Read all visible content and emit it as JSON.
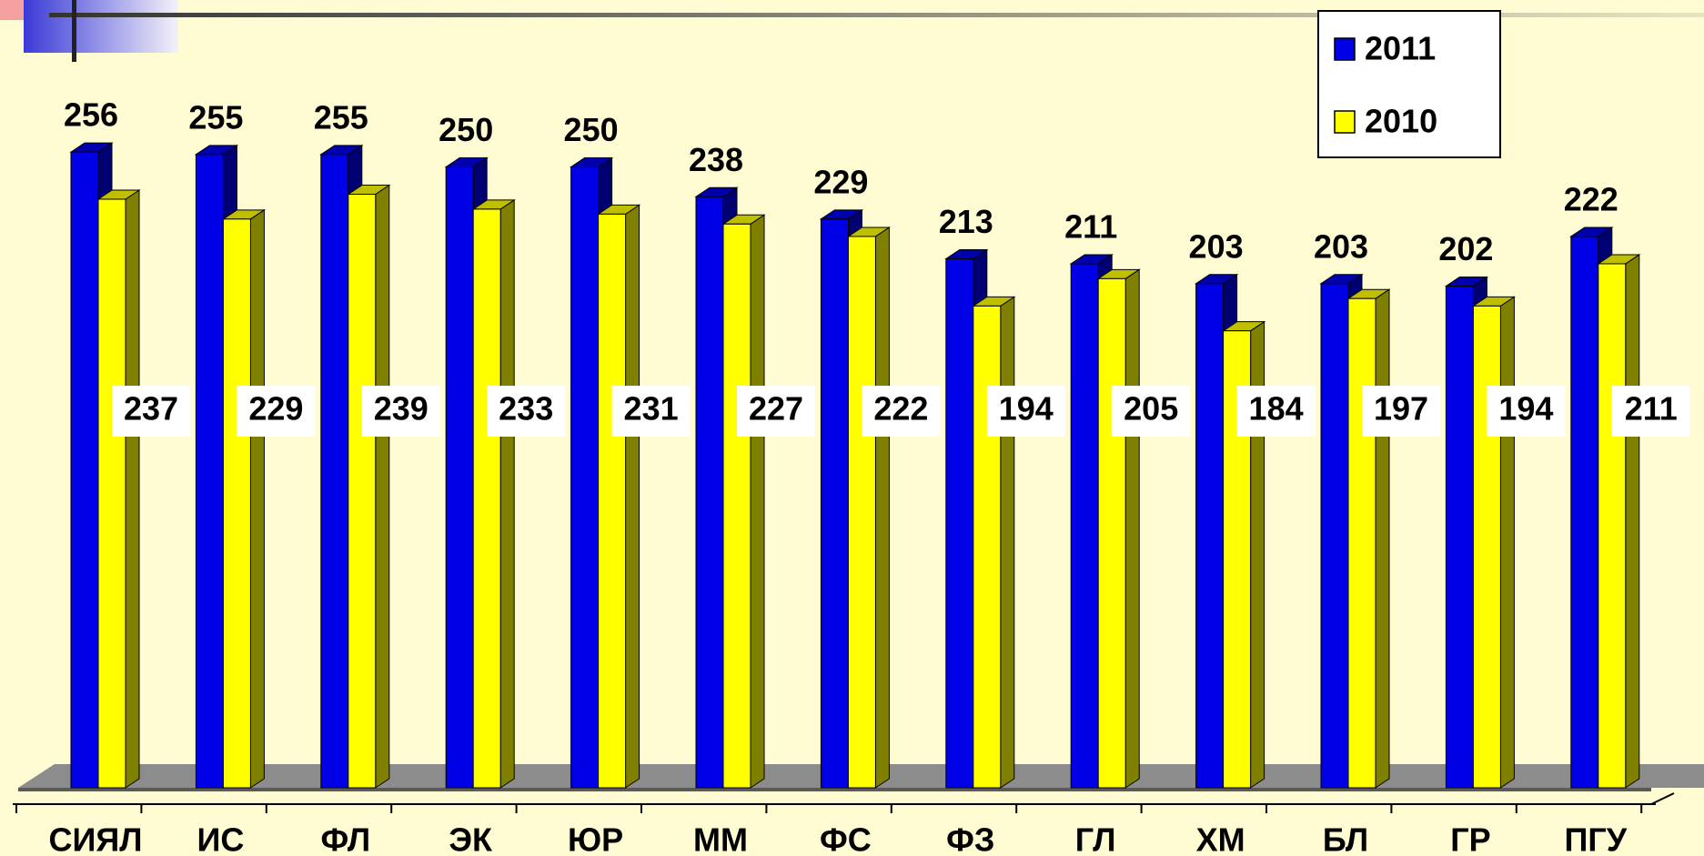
{
  "chart_data": {
    "type": "bar3d",
    "categories": [
      "СИЯЛ",
      "ИС",
      "ФЛ",
      "ЭК",
      "ЮР",
      "ММ",
      "ФС",
      "ФЗ",
      "ГЛ",
      "ХМ",
      "БЛ",
      "ГР",
      "ПГУ"
    ],
    "series": [
      {
        "name": "2011",
        "color": "#0000e6",
        "values": [
          256,
          255,
          255,
          250,
          250,
          238,
          229,
          213,
          211,
          203,
          203,
          202,
          222
        ]
      },
      {
        "name": "2010",
        "color": "#ffff00",
        "values": [
          237,
          229,
          239,
          233,
          231,
          227,
          222,
          194,
          205,
          184,
          197,
          194,
          211
        ]
      }
    ],
    "legend": "top-right"
  }
}
